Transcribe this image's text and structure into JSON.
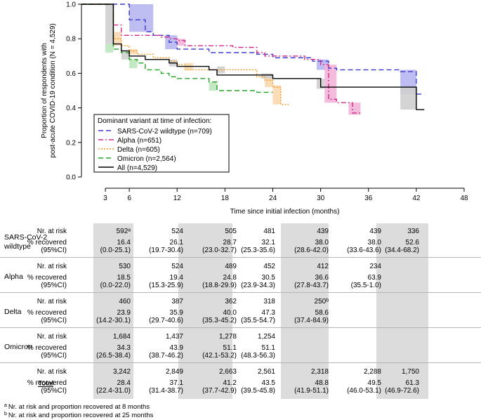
{
  "chart_data": {
    "type": "line",
    "title": "",
    "xlabel": "Time since initial infection (months)",
    "ylabel": "Proportion of respondents with post-acute COVID-19 condition (N = 4,529)",
    "xlim": [
      0,
      48
    ],
    "ylim": [
      0,
      1.0
    ],
    "xticks": [
      3,
      6,
      12,
      18,
      24,
      30,
      36,
      42,
      48
    ],
    "yticks": [
      "0.0",
      "0.2",
      "0.4",
      "0.6",
      "0.8",
      "1.0"
    ],
    "legend": {
      "title": "Dominant variant at time of infection:",
      "position": "bottom-left"
    },
    "series": [
      {
        "name": "SARS-CoV-2 wildtype (n=709)",
        "color": "#3a3ad1",
        "dash": "dashed",
        "x": [
          0,
          3,
          6,
          8,
          9,
          10,
          11,
          12,
          14,
          16,
          22,
          24,
          26,
          29,
          31,
          32,
          34,
          40,
          42,
          43
        ],
        "y": [
          1.0,
          1.0,
          0.91,
          0.84,
          0.82,
          0.82,
          0.78,
          0.74,
          0.74,
          0.72,
          0.71,
          0.69,
          0.69,
          0.67,
          0.63,
          0.62,
          0.62,
          0.61,
          0.48,
          0.48
        ]
      },
      {
        "name": "Alpha (n=651)",
        "color": "#d6288a",
        "dash": "dashdot",
        "x": [
          0,
          3,
          4,
          5,
          7,
          10,
          11,
          12,
          13,
          15,
          19,
          22,
          23,
          25,
          28,
          30,
          31,
          32,
          34,
          35
        ],
        "y": [
          1.0,
          1.0,
          0.88,
          0.82,
          0.82,
          0.81,
          0.8,
          0.79,
          0.76,
          0.76,
          0.75,
          0.72,
          0.7,
          0.7,
          0.68,
          0.65,
          0.45,
          0.43,
          0.37,
          0.37
        ]
      },
      {
        "name": "Delta (n=605)",
        "color": "#f59a1e",
        "dash": "dotted",
        "x": [
          0,
          3,
          4,
          5,
          6,
          7,
          9,
          10,
          11,
          12,
          13,
          16,
          18,
          22,
          23,
          24,
          25,
          26
        ],
        "y": [
          1.0,
          1.0,
          0.8,
          0.76,
          0.73,
          0.71,
          0.69,
          0.69,
          0.67,
          0.65,
          0.62,
          0.62,
          0.62,
          0.58,
          0.56,
          0.52,
          0.42,
          0.42
        ]
      },
      {
        "name": "Omicron (n=2,564)",
        "color": "#21a321",
        "dash": "dashed",
        "x": [
          0,
          3,
          4,
          5,
          6,
          7,
          8,
          10,
          11,
          12,
          14,
          16,
          17,
          20,
          22,
          24
        ],
        "y": [
          1.0,
          1.0,
          0.74,
          0.72,
          0.68,
          0.66,
          0.62,
          0.6,
          0.58,
          0.57,
          0.57,
          0.55,
          0.5,
          0.5,
          0.49,
          0.49
        ]
      },
      {
        "name": "All (n=4,529)",
        "color": "#000000",
        "dash": "solid",
        "x": [
          0,
          3,
          4,
          5,
          6,
          8,
          11,
          12,
          16,
          17,
          22,
          24,
          29,
          30,
          34,
          40,
          42,
          43
        ],
        "y": [
          1.0,
          1.0,
          0.77,
          0.73,
          0.7,
          0.68,
          0.66,
          0.64,
          0.62,
          0.59,
          0.59,
          0.57,
          0.57,
          0.52,
          0.52,
          0.52,
          0.39,
          0.39
        ]
      }
    ],
    "ci_boxes": [
      {
        "series": "SARS-CoV-2 wildtype (n=709)",
        "x0": 6,
        "x1": 9,
        "ylo": 0.84,
        "yhi": 1.0,
        "color": "#b6b6f0"
      },
      {
        "series": "SARS-CoV-2 wildtype (n=709)",
        "x0": 10.5,
        "x1": 12,
        "ylo": 0.74,
        "yhi": 0.82,
        "color": "#b6b6f0"
      },
      {
        "series": "SARS-CoV-2 wildtype (n=709)",
        "x0": 40,
        "x1": 42,
        "ylo": 0.48,
        "yhi": 0.62,
        "color": "#b6b6f0"
      },
      {
        "series": "SARS-CoV-2 wildtype (n=709)",
        "x0": 29.5,
        "x1": 31,
        "ylo": 0.62,
        "yhi": 0.68,
        "color": "#b6b6f0"
      },
      {
        "series": "Alpha (n=651)",
        "x0": 12,
        "x1": 13,
        "ylo": 0.76,
        "yhi": 0.8,
        "color": "#f2b4d8"
      },
      {
        "series": "Alpha (n=651)",
        "x0": 30.5,
        "x1": 32,
        "ylo": 0.43,
        "yhi": 0.65,
        "color": "#f2b4d8"
      },
      {
        "series": "Alpha (n=651)",
        "x0": 33.5,
        "x1": 35,
        "ylo": 0.36,
        "yhi": 0.43,
        "color": "#f2b4d8"
      },
      {
        "series": "Delta (n=605)",
        "x0": 4,
        "x1": 5,
        "ylo": 0.76,
        "yhi": 0.84,
        "color": "#f9d9b0"
      },
      {
        "series": "Delta (n=605)",
        "x0": 6,
        "x1": 7,
        "ylo": 0.71,
        "yhi": 0.74,
        "color": "#f9d9b0"
      },
      {
        "series": "Delta (n=605)",
        "x0": 13,
        "x1": 14,
        "ylo": 0.62,
        "yhi": 0.66,
        "color": "#f9d9b0"
      },
      {
        "series": "Delta (n=605)",
        "x0": 24,
        "x1": 25,
        "ylo": 0.42,
        "yhi": 0.53,
        "color": "#f9d9b0"
      },
      {
        "series": "Delta (n=605)",
        "x0": 23,
        "x1": 24,
        "ylo": 0.52,
        "yhi": 0.58,
        "color": "#f9d9b0"
      },
      {
        "series": "Omicron (n=2,564)",
        "x0": 3,
        "x1": 4,
        "ylo": 0.72,
        "yhi": 0.77,
        "color": "#bde6bd"
      },
      {
        "series": "Omicron (n=2,564)",
        "x0": 6,
        "x1": 7,
        "ylo": 0.63,
        "yhi": 0.68,
        "color": "#bde6bd"
      },
      {
        "series": "Omicron (n=2,564)",
        "x0": 16,
        "x1": 17,
        "ylo": 0.5,
        "yhi": 0.55,
        "color": "#bde6bd"
      },
      {
        "series": "All (n=4,529)",
        "x0": 3,
        "x1": 4,
        "ylo": 0.77,
        "yhi": 1.0,
        "color": "#cfcfcf"
      },
      {
        "series": "All (n=4,529)",
        "x0": 5,
        "x1": 6,
        "ylo": 0.68,
        "yhi": 0.73,
        "color": "#cfcfcf"
      },
      {
        "series": "All (n=4,529)",
        "x0": 11,
        "x1": 12,
        "ylo": 0.64,
        "yhi": 0.68,
        "color": "#cfcfcf"
      },
      {
        "series": "All (n=4,529)",
        "x0": 17,
        "x1": 18,
        "ylo": 0.6,
        "yhi": 0.64,
        "color": "#cfcfcf"
      },
      {
        "series": "All (n=4,529)",
        "x0": 22.5,
        "x1": 24,
        "ylo": 0.57,
        "yhi": 0.6,
        "color": "#cfcfcf"
      },
      {
        "series": "All (n=4,529)",
        "x0": 29.5,
        "x1": 30.5,
        "ylo": 0.51,
        "yhi": 0.57,
        "color": "#cfcfcf"
      },
      {
        "series": "All (n=4,529)",
        "x0": 40,
        "x1": 42,
        "ylo": 0.39,
        "yhi": 0.52,
        "color": "#cfcfcf"
      }
    ]
  },
  "table": {
    "metric_labels": [
      "Nr. at risk",
      "% recovered",
      "(95%CI)"
    ],
    "groups": [
      {
        "name": [
          "SARS-CoV-2",
          "wildtype"
        ],
        "at_risk": [
          "592ᵃ",
          "524",
          "505",
          "481",
          "439",
          "439",
          "336"
        ],
        "recovered": [
          "16.4",
          "26.1",
          "28.7",
          "32.1",
          "38.0",
          "38.0",
          "52.6"
        ],
        "ci": [
          "(0.0-25.1)",
          "(19.7-30.4)",
          "(23.0-32.7)",
          "(25.3-35.6)",
          "(28.6-42.0)",
          "(33.6-43.6)",
          "(34.4-68.2)"
        ]
      },
      {
        "name": [
          "Alpha"
        ],
        "at_risk": [
          "530",
          "524",
          "489",
          "452",
          "412",
          "234",
          ""
        ],
        "recovered": [
          "18.5",
          "19.4",
          "24.8",
          "30.5",
          "36.6",
          "63.9",
          ""
        ],
        "ci": [
          "(0.0-22.0)",
          "(15.3-25.9)",
          "(18.8-29.9)",
          "(23.9-34.3)",
          "(27.8-43.7)",
          "(35.5-1.0)",
          ""
        ]
      },
      {
        "name": [
          "Delta"
        ],
        "at_risk": [
          "460",
          "387",
          "362",
          "318",
          "250ᵇ",
          "",
          ""
        ],
        "recovered": [
          "23.9",
          "35.9",
          "40.0",
          "47.3",
          "58.6",
          "",
          ""
        ],
        "ci": [
          "(14.2-30.1)",
          "(29.7-40.6)",
          "(35.3-45.2)",
          "(35.5-54.7)",
          "(37.4-84.9)",
          "",
          ""
        ]
      },
      {
        "name": [
          "Omicron"
        ],
        "at_risk": [
          "1,684",
          "1,437",
          "1,278",
          "1,254",
          "",
          "",
          ""
        ],
        "recovered": [
          "34.3",
          "43.9",
          "51.1",
          "51.1",
          "",
          "",
          ""
        ],
        "ci": [
          "(26.5-38.4)",
          "(38.7-46.2)",
          "(42.1-53.2)",
          "(48.3-56.3)",
          "",
          "",
          ""
        ]
      },
      {
        "name": [
          "Total"
        ],
        "at_risk": [
          "3,242",
          "2,849",
          "2,663",
          "2,561",
          "2,318",
          "2,288",
          "1,750"
        ],
        "recovered": [
          "28.4",
          "37.1",
          "41.2",
          "43.5",
          "48.8",
          "49.5",
          "61.3"
        ],
        "ci": [
          "(22.4-31.0)",
          "(31.4-38.7)",
          "(37.7-42.9)",
          "(39.5-45.8)",
          "(41.9-51.1)",
          "(46.0-53.1)",
          "(46.9-72.6)"
        ]
      }
    ]
  },
  "footnotes": [
    {
      "mark": "a",
      "text": "Nr. at risk and proportion recovered at 8 months"
    },
    {
      "mark": "b",
      "text": "Nr. at risk and proportion recovered at 25 months"
    }
  ]
}
